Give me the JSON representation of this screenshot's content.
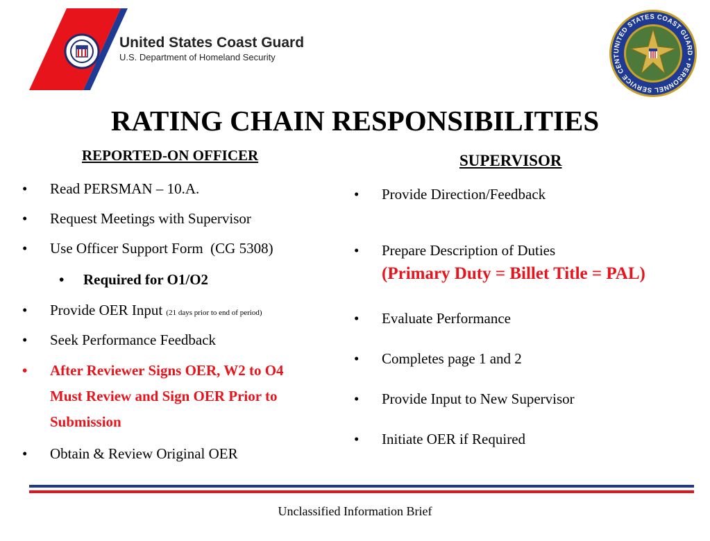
{
  "header": {
    "org_name": "United States Coast Guard",
    "org_dept": "U.S. Department of Homeland Security",
    "seal_text": "UNITED STATES COAST GUARD • PERSONNEL SERVICE CENTER"
  },
  "colors": {
    "red": "#e8141b",
    "blue": "#1f3a93",
    "navy": "#1a2a6c"
  },
  "title": "RATING CHAIN RESPONSIBILITIES",
  "left": {
    "heading": "REPORTED-ON OFFICER",
    "items": [
      {
        "bullet": "•",
        "text": "Read PERSMAN – 10.A."
      },
      {
        "bullet": "•",
        "text": "Request Meetings with Supervisor"
      },
      {
        "bullet": "•",
        "text": "Use Officer Support Form  (CG 5308)"
      },
      {
        "bullet": "•",
        "text": "Required for O1/O2"
      },
      {
        "bullet": "•",
        "text": "Provide OER Input ",
        "note": "(21 days prior to end of period)"
      },
      {
        "bullet": "•",
        "text": "Seek Performance Feedback"
      },
      {
        "bullet": "•",
        "lines": [
          "After Reviewer Signs OER, W2 to O4",
          "Must Review and Sign OER Prior to",
          "Submission"
        ]
      },
      {
        "bullet": "•",
        "text": "Obtain & Review Original OER"
      }
    ]
  },
  "right": {
    "heading": "SUPERVISOR",
    "items": [
      {
        "bullet": "•",
        "text": "Provide Direction/Feedback"
      },
      {
        "bullet": "•",
        "text": "Prepare Description of Duties",
        "sub": "(Primary Duty = Billet Title = PAL)"
      },
      {
        "bullet": "•",
        "text": "Evaluate Performance"
      },
      {
        "bullet": "•",
        "text": "Completes page 1 and 2"
      },
      {
        "bullet": "•",
        "text": "Provide Input to New Supervisor"
      },
      {
        "bullet": "•",
        "text": "Initiate OER if Required"
      }
    ]
  },
  "footer": {
    "text": "Unclassified Information Brief"
  }
}
